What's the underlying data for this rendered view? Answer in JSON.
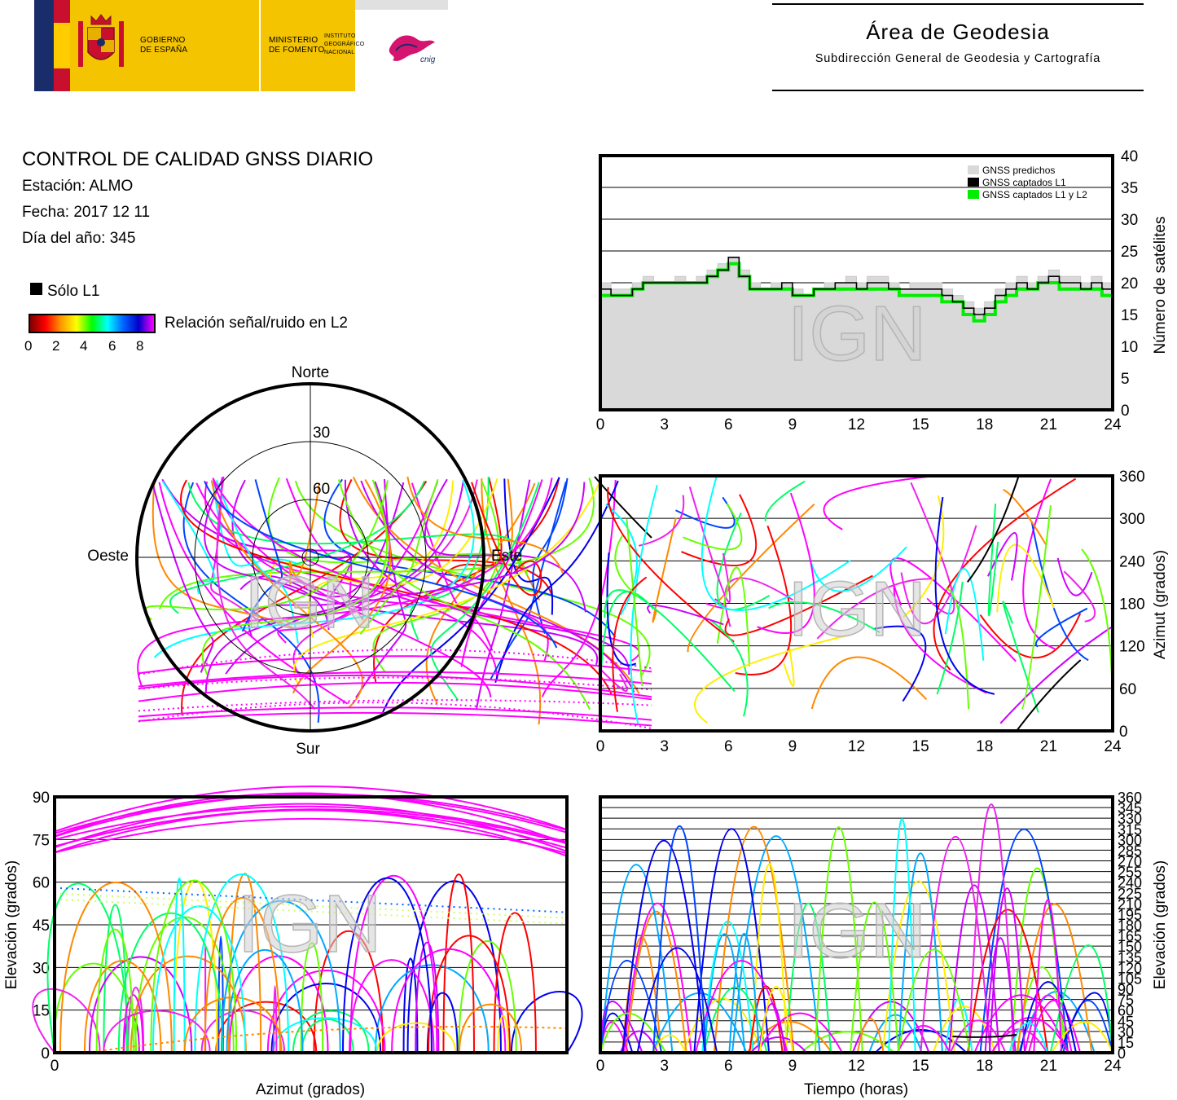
{
  "header": {
    "gov_line1": "GOBIERNO",
    "gov_line2": "DE ESPAÑA",
    "min_line1": "MINISTERIO",
    "min_line2": "DE FOMENTO",
    "ign_line1": "INSTITUTO",
    "ign_line2": "GEOGRÁFICO",
    "ign_line3": "NACIONAL",
    "ign_logo_text": "cnig",
    "area_title": "Área de Geodesia",
    "area_subtitle": "Subdirección General de Geodesia y Cartografía"
  },
  "info": {
    "title": "CONTROL DE CALIDAD GNSS DIARIO",
    "station": "Estación: ALMO",
    "date": "Fecha: 2017 12 11",
    "day_of_year": "Día del año: 345"
  },
  "legend": {
    "l1_only": "Sólo L1",
    "snr_label": "Relación señal/ruido en L2",
    "snr_ticks": [
      "0",
      "2",
      "4",
      "6",
      "8"
    ],
    "colors": {
      "l1_only": "#000000",
      "predicted": "#d9d9d9",
      "captured_l1": "#000000",
      "captured_l1_l2": "#00ee00"
    }
  },
  "watermark": "IGN",
  "chart_data": [
    {
      "type": "area",
      "id": "satellite-count",
      "ylabel": "Número de satélites",
      "x_ticks": [
        "0",
        "3",
        "6",
        "9",
        "12",
        "15",
        "18",
        "21",
        "24"
      ],
      "y_ticks": [
        "0",
        "5",
        "10",
        "15",
        "20",
        "25",
        "30",
        "35",
        "40"
      ],
      "xlim": [
        0,
        24
      ],
      "ylim": [
        0,
        40
      ],
      "grid": true,
      "legend_position": "top-right",
      "legend": [
        "GNSS predichos",
        "GNSS captados L1",
        "GNSS captados L1 y L2"
      ],
      "x": [
        0,
        0.5,
        1,
        1.5,
        2,
        2.5,
        3,
        3.5,
        4,
        4.5,
        5,
        5.5,
        6,
        6.5,
        7,
        7.5,
        8,
        8.5,
        9,
        9.5,
        10,
        10.5,
        11,
        11.5,
        12,
        12.5,
        13,
        13.5,
        14,
        14.5,
        15,
        15.5,
        16,
        16.5,
        17,
        17.5,
        18,
        18.5,
        19,
        19.5,
        20,
        20.5,
        21,
        21.5,
        22,
        22.5,
        23,
        23.5,
        24
      ],
      "series": [
        {
          "name": "GNSS predichos",
          "values": [
            20,
            19,
            19,
            20,
            21,
            20,
            20,
            21,
            20,
            21,
            22,
            23,
            24,
            22,
            20,
            19,
            20,
            20,
            19,
            18,
            19,
            20,
            20,
            21,
            20,
            21,
            21,
            20,
            19,
            20,
            20,
            20,
            19,
            18,
            17,
            16,
            17,
            19,
            20,
            21,
            20,
            21,
            22,
            21,
            21,
            20,
            21,
            20,
            20
          ]
        },
        {
          "name": "GNSS captados L1",
          "values": [
            19,
            18,
            18,
            19,
            20,
            20,
            20,
            20,
            20,
            20,
            21,
            22,
            24,
            21,
            19,
            19,
            19,
            20,
            18,
            18,
            19,
            19,
            20,
            20,
            19,
            20,
            20,
            19,
            19,
            19,
            19,
            19,
            18,
            17,
            16,
            15,
            16,
            18,
            19,
            20,
            19,
            20,
            21,
            20,
            20,
            19,
            20,
            19,
            19
          ]
        },
        {
          "name": "GNSS captados L1 y L2",
          "values": [
            18,
            18,
            18,
            19,
            20,
            20,
            20,
            20,
            20,
            20,
            21,
            22,
            23,
            21,
            19,
            19,
            19,
            19,
            18,
            18,
            19,
            19,
            19,
            19,
            19,
            19,
            19,
            19,
            18,
            18,
            18,
            18,
            17,
            17,
            15,
            14,
            15,
            17,
            18,
            19,
            19,
            20,
            20,
            19,
            19,
            19,
            19,
            18,
            18
          ]
        }
      ]
    },
    {
      "type": "scatter",
      "id": "skyplot",
      "labels": {
        "north": "Norte",
        "south": "Sur",
        "east": "Este",
        "west": "Oeste"
      },
      "ring_labels": [
        "30",
        "60"
      ]
    },
    {
      "type": "scatter",
      "id": "azimuth-vs-time",
      "ylabel": "Azimut (grados)",
      "x_ticks": [
        "0",
        "3",
        "6",
        "9",
        "12",
        "15",
        "18",
        "21",
        "24"
      ],
      "y_ticks": [
        "0",
        "60",
        "120",
        "180",
        "240",
        "300",
        "360"
      ],
      "xlim": [
        0,
        24
      ],
      "ylim": [
        0,
        360
      ],
      "grid": true
    },
    {
      "type": "scatter",
      "id": "elevation-vs-azimuth",
      "xlabel": "Azimut (grados)",
      "ylabel": "Elevación (grados)",
      "x_ticks": [
        "0"
      ],
      "y_ticks": [
        "0",
        "15",
        "30",
        "45",
        "60",
        "75",
        "90"
      ],
      "ylim": [
        0,
        90
      ],
      "grid": true
    },
    {
      "type": "scatter",
      "id": "elevation-vs-time",
      "xlabel": "Tiempo (horas)",
      "ylabel": "Elevación (grados)",
      "x_ticks": [
        "0",
        "3",
        "6",
        "9",
        "12",
        "15",
        "18",
        "21",
        "24"
      ],
      "y_ticks": [
        "0",
        "15",
        "30",
        "45",
        "60",
        "75",
        "90",
        "105",
        "120",
        "135",
        "150",
        "165",
        "180",
        "195",
        "210",
        "225",
        "240",
        "255",
        "270",
        "285",
        "300",
        "315",
        "330",
        "345",
        "360"
      ],
      "xlim": [
        0,
        24
      ],
      "ylim": [
        0,
        360
      ],
      "grid": true
    }
  ]
}
